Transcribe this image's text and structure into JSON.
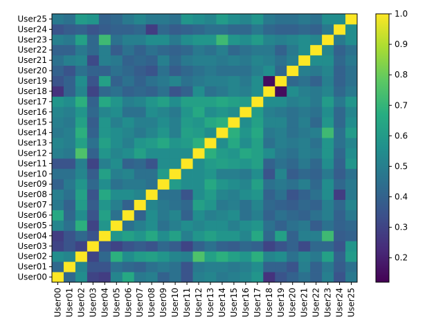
{
  "chart_data": {
    "type": "heatmap",
    "title": "",
    "xlabel": "",
    "ylabel": "",
    "labels": [
      "User00",
      "User01",
      "User02",
      "User03",
      "User04",
      "User05",
      "User06",
      "User07",
      "User08",
      "User09",
      "User10",
      "User11",
      "User12",
      "User13",
      "User14",
      "User15",
      "User16",
      "User17",
      "User18",
      "User19",
      "User20",
      "User21",
      "User22",
      "User23",
      "User24",
      "User25"
    ],
    "x_tick_labels": [
      "User00",
      "User01",
      "User02",
      "User03",
      "User04",
      "User05",
      "User06",
      "User07",
      "User08",
      "User09",
      "User10",
      "User11",
      "User12",
      "User13",
      "User14",
      "User15",
      "User16",
      "User17",
      "User18",
      "User19",
      "User20",
      "User21",
      "User22",
      "User23",
      "User24",
      "User25"
    ],
    "y_tick_labels_top_to_bottom": [
      "User25",
      "User24",
      "User23",
      "User22",
      "User21",
      "User20",
      "User19",
      "User18",
      "User17",
      "User16",
      "User15",
      "User14",
      "User13",
      "User12",
      "User11",
      "User10",
      "User09",
      "User08",
      "User07",
      "User06",
      "User05",
      "User04",
      "User03",
      "User02",
      "User01",
      "User00"
    ],
    "matrix": [
      [
        1.0,
        0.42,
        0.55,
        0.3,
        0.28,
        0.52,
        0.65,
        0.48,
        0.5,
        0.4,
        0.45,
        0.35,
        0.5,
        0.52,
        0.48,
        0.5,
        0.52,
        0.58,
        0.25,
        0.35,
        0.4,
        0.45,
        0.4,
        0.5,
        0.35,
        0.48
      ],
      [
        0.42,
        1.0,
        0.52,
        0.35,
        0.35,
        0.45,
        0.42,
        0.4,
        0.45,
        0.48,
        0.45,
        0.35,
        0.48,
        0.5,
        0.5,
        0.48,
        0.5,
        0.55,
        0.4,
        0.4,
        0.35,
        0.5,
        0.4,
        0.48,
        0.38,
        0.45
      ],
      [
        0.55,
        0.52,
        1.0,
        0.3,
        0.42,
        0.68,
        0.55,
        0.6,
        0.62,
        0.58,
        0.52,
        0.5,
        0.75,
        0.62,
        0.68,
        0.62,
        0.58,
        0.68,
        0.52,
        0.55,
        0.45,
        0.52,
        0.48,
        0.62,
        0.4,
        0.6
      ],
      [
        0.3,
        0.35,
        0.3,
        1.0,
        0.35,
        0.3,
        0.35,
        0.38,
        0.35,
        0.42,
        0.38,
        0.3,
        0.4,
        0.45,
        0.4,
        0.38,
        0.42,
        0.4,
        0.3,
        0.35,
        0.4,
        0.32,
        0.42,
        0.42,
        0.35,
        0.58
      ],
      [
        0.28,
        0.35,
        0.42,
        0.35,
        1.0,
        0.58,
        0.62,
        0.58,
        0.65,
        0.55,
        0.62,
        0.5,
        0.58,
        0.62,
        0.58,
        0.58,
        0.52,
        0.65,
        0.42,
        0.62,
        0.4,
        0.5,
        0.5,
        0.72,
        0.38,
        0.4
      ],
      [
        0.52,
        0.45,
        0.68,
        0.3,
        0.58,
        1.0,
        0.45,
        0.5,
        0.55,
        0.45,
        0.5,
        0.55,
        0.52,
        0.55,
        0.55,
        0.5,
        0.55,
        0.58,
        0.45,
        0.4,
        0.45,
        0.48,
        0.38,
        0.45,
        0.4,
        0.42
      ],
      [
        0.65,
        0.42,
        0.55,
        0.35,
        0.62,
        0.45,
        1.0,
        0.4,
        0.55,
        0.48,
        0.52,
        0.4,
        0.55,
        0.5,
        0.52,
        0.55,
        0.45,
        0.5,
        0.4,
        0.45,
        0.42,
        0.4,
        0.45,
        0.5,
        0.4,
        0.48
      ],
      [
        0.48,
        0.4,
        0.6,
        0.38,
        0.58,
        0.5,
        0.4,
        1.0,
        0.52,
        0.48,
        0.45,
        0.42,
        0.62,
        0.58,
        0.48,
        0.5,
        0.45,
        0.52,
        0.42,
        0.4,
        0.38,
        0.42,
        0.4,
        0.5,
        0.42,
        0.52
      ],
      [
        0.5,
        0.45,
        0.62,
        0.35,
        0.65,
        0.55,
        0.55,
        0.52,
        1.0,
        0.45,
        0.45,
        0.35,
        0.55,
        0.6,
        0.52,
        0.5,
        0.55,
        0.58,
        0.4,
        0.45,
        0.35,
        0.4,
        0.45,
        0.55,
        0.28,
        0.48
      ],
      [
        0.4,
        0.48,
        0.58,
        0.42,
        0.55,
        0.45,
        0.48,
        0.48,
        0.45,
        1.0,
        0.6,
        0.55,
        0.55,
        0.65,
        0.58,
        0.55,
        0.52,
        0.62,
        0.45,
        0.48,
        0.45,
        0.5,
        0.42,
        0.55,
        0.42,
        0.48
      ],
      [
        0.45,
        0.45,
        0.52,
        0.38,
        0.62,
        0.5,
        0.52,
        0.45,
        0.45,
        0.6,
        1.0,
        0.55,
        0.55,
        0.58,
        0.5,
        0.5,
        0.48,
        0.55,
        0.35,
        0.52,
        0.38,
        0.42,
        0.4,
        0.48,
        0.38,
        0.45
      ],
      [
        0.35,
        0.35,
        0.5,
        0.3,
        0.5,
        0.55,
        0.4,
        0.42,
        0.35,
        0.55,
        0.55,
        1.0,
        0.55,
        0.6,
        0.62,
        0.6,
        0.58,
        0.62,
        0.4,
        0.45,
        0.42,
        0.48,
        0.42,
        0.55,
        0.4,
        0.58
      ],
      [
        0.5,
        0.48,
        0.75,
        0.4,
        0.58,
        0.52,
        0.55,
        0.62,
        0.55,
        0.55,
        0.55,
        0.55,
        1.0,
        0.68,
        0.6,
        0.58,
        0.65,
        0.62,
        0.55,
        0.48,
        0.45,
        0.5,
        0.48,
        0.58,
        0.42,
        0.55
      ],
      [
        0.52,
        0.5,
        0.62,
        0.45,
        0.62,
        0.55,
        0.5,
        0.58,
        0.6,
        0.65,
        0.58,
        0.6,
        0.68,
        1.0,
        0.55,
        0.65,
        0.55,
        0.62,
        0.45,
        0.5,
        0.48,
        0.5,
        0.45,
        0.58,
        0.45,
        0.52
      ],
      [
        0.48,
        0.5,
        0.68,
        0.4,
        0.58,
        0.55,
        0.52,
        0.48,
        0.52,
        0.58,
        0.5,
        0.62,
        0.6,
        0.55,
        1.0,
        0.68,
        0.58,
        0.65,
        0.48,
        0.5,
        0.45,
        0.48,
        0.5,
        0.72,
        0.45,
        0.6
      ],
      [
        0.5,
        0.48,
        0.62,
        0.38,
        0.58,
        0.5,
        0.55,
        0.5,
        0.5,
        0.55,
        0.5,
        0.6,
        0.58,
        0.65,
        0.68,
        1.0,
        0.55,
        0.62,
        0.52,
        0.52,
        0.45,
        0.5,
        0.42,
        0.58,
        0.42,
        0.55
      ],
      [
        0.52,
        0.5,
        0.58,
        0.42,
        0.52,
        0.55,
        0.45,
        0.45,
        0.55,
        0.52,
        0.48,
        0.58,
        0.65,
        0.55,
        0.58,
        0.55,
        1.0,
        0.6,
        0.5,
        0.48,
        0.45,
        0.48,
        0.45,
        0.55,
        0.42,
        0.52
      ],
      [
        0.58,
        0.55,
        0.68,
        0.4,
        0.65,
        0.58,
        0.5,
        0.52,
        0.58,
        0.62,
        0.55,
        0.62,
        0.62,
        0.62,
        0.65,
        0.62,
        0.6,
        1.0,
        0.55,
        0.55,
        0.5,
        0.52,
        0.48,
        0.6,
        0.48,
        0.58
      ],
      [
        0.25,
        0.4,
        0.52,
        0.3,
        0.42,
        0.45,
        0.4,
        0.42,
        0.4,
        0.45,
        0.35,
        0.4,
        0.55,
        0.45,
        0.48,
        0.52,
        0.5,
        0.55,
        1.0,
        0.15,
        0.55,
        0.5,
        0.48,
        0.52,
        0.42,
        0.48
      ],
      [
        0.35,
        0.4,
        0.55,
        0.35,
        0.62,
        0.4,
        0.45,
        0.4,
        0.45,
        0.48,
        0.52,
        0.45,
        0.48,
        0.5,
        0.5,
        0.52,
        0.48,
        0.55,
        0.15,
        1.0,
        0.42,
        0.45,
        0.4,
        0.5,
        0.4,
        0.45
      ],
      [
        0.4,
        0.35,
        0.45,
        0.4,
        0.4,
        0.45,
        0.42,
        0.38,
        0.35,
        0.45,
        0.38,
        0.42,
        0.45,
        0.48,
        0.45,
        0.45,
        0.45,
        0.5,
        0.55,
        0.42,
        1.0,
        0.5,
        0.48,
        0.52,
        0.4,
        0.45
      ],
      [
        0.45,
        0.5,
        0.52,
        0.32,
        0.5,
        0.48,
        0.4,
        0.42,
        0.4,
        0.5,
        0.42,
        0.48,
        0.5,
        0.5,
        0.48,
        0.5,
        0.48,
        0.52,
        0.5,
        0.45,
        0.5,
        1.0,
        0.55,
        0.55,
        0.42,
        0.48
      ],
      [
        0.4,
        0.4,
        0.48,
        0.42,
        0.5,
        0.38,
        0.45,
        0.4,
        0.45,
        0.42,
        0.4,
        0.42,
        0.48,
        0.45,
        0.5,
        0.42,
        0.45,
        0.48,
        0.48,
        0.4,
        0.48,
        0.55,
        1.0,
        0.52,
        0.4,
        0.45
      ],
      [
        0.5,
        0.48,
        0.62,
        0.42,
        0.72,
        0.45,
        0.5,
        0.5,
        0.55,
        0.55,
        0.48,
        0.55,
        0.58,
        0.58,
        0.72,
        0.58,
        0.55,
        0.6,
        0.52,
        0.5,
        0.52,
        0.55,
        0.52,
        1.0,
        0.48,
        0.55
      ],
      [
        0.35,
        0.38,
        0.4,
        0.35,
        0.38,
        0.4,
        0.4,
        0.42,
        0.28,
        0.42,
        0.38,
        0.4,
        0.42,
        0.45,
        0.45,
        0.42,
        0.42,
        0.48,
        0.42,
        0.4,
        0.4,
        0.42,
        0.4,
        0.48,
        1.0,
        0.55
      ],
      [
        0.48,
        0.45,
        0.6,
        0.58,
        0.4,
        0.42,
        0.48,
        0.52,
        0.48,
        0.48,
        0.45,
        0.58,
        0.55,
        0.52,
        0.6,
        0.55,
        0.52,
        0.58,
        0.48,
        0.45,
        0.45,
        0.48,
        0.45,
        0.55,
        0.55,
        1.0
      ]
    ],
    "colorbar": {
      "colormap": "viridis",
      "vmin": 0.12,
      "vmax": 1.0,
      "ticks": [
        0.2,
        0.3,
        0.4,
        0.5,
        0.6,
        0.7,
        0.8,
        0.9,
        1.0
      ],
      "tick_labels": [
        "0.2",
        "0.3",
        "0.4",
        "0.5",
        "0.6",
        "0.7",
        "0.8",
        "0.9",
        "1.0"
      ]
    },
    "grid": false,
    "legend": "none"
  }
}
